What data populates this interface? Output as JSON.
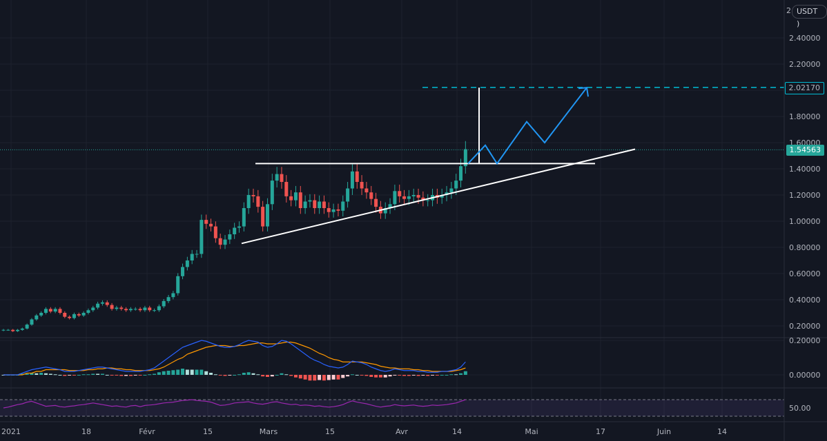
{
  "currency": {
    "prefix": "2",
    "label": "USDT )"
  },
  "last_price_label": "1.54563",
  "target_price_label": "2.02170",
  "colors": {
    "up": "#26a69a",
    "down": "#ef5350",
    "background": "#131722",
    "macd": "#2962ff",
    "signal": "#ff9800",
    "rsi": "#9c27b0",
    "projection": "#2196f3",
    "target_line": "#00bcd4",
    "drawing": "#ffffff"
  },
  "chart_data": [
    {
      "type": "candlestick",
      "pane": "price",
      "y_axis_ticks": [
        "2.40000",
        "2.20000",
        "2.00000",
        "1.80000",
        "1.60000",
        "1.40000",
        "1.20000",
        "1.00000",
        "0.80000",
        "0.60000",
        "0.40000",
        "0.20000"
      ],
      "x_axis_ticks": [
        "2021",
        "18",
        "Févr",
        "15",
        "Mars",
        "15",
        "Avr",
        "14",
        "Mai",
        "17",
        "Juin",
        "14"
      ],
      "ylim": [
        0.1,
        2.6
      ],
      "timeframe_note": "daily candles from 2021-01-01 to 2021-04-14",
      "closes": [
        0.17,
        0.17,
        0.16,
        0.17,
        0.18,
        0.21,
        0.25,
        0.28,
        0.3,
        0.33,
        0.31,
        0.33,
        0.3,
        0.27,
        0.26,
        0.29,
        0.28,
        0.3,
        0.32,
        0.34,
        0.37,
        0.38,
        0.36,
        0.33,
        0.34,
        0.33,
        0.32,
        0.33,
        0.33,
        0.32,
        0.34,
        0.32,
        0.32,
        0.35,
        0.39,
        0.42,
        0.45,
        0.58,
        0.65,
        0.7,
        0.75,
        0.75,
        1.01,
        0.98,
        0.96,
        0.87,
        0.82,
        0.86,
        0.9,
        0.95,
        0.96,
        1.1,
        1.2,
        1.19,
        1.11,
        0.96,
        1.13,
        1.31,
        1.36,
        1.3,
        1.19,
        1.16,
        1.22,
        1.1,
        1.15,
        1.16,
        1.1,
        1.15,
        1.1,
        1.07,
        1.09,
        1.08,
        1.15,
        1.25,
        1.38,
        1.3,
        1.25,
        1.22,
        1.17,
        1.11,
        1.06,
        1.1,
        1.13,
        1.23,
        1.19,
        1.17,
        1.19,
        1.2,
        1.18,
        1.16,
        1.16,
        1.2,
        1.18,
        1.2,
        1.22,
        1.25,
        1.31,
        1.42,
        1.55
      ],
      "price_lines": [
        {
          "label": "last",
          "value": 1.54563
        },
        {
          "label": "target",
          "value": 2.0217
        }
      ],
      "drawings": {
        "resistance": {
          "from": 1.44,
          "to": 1.44
        },
        "ascending_support": {
          "from": 0.83,
          "to": 1.55
        },
        "measured_move": {
          "from": 1.44,
          "to": 2.02
        },
        "projection_path": [
          1.44,
          1.58,
          1.44,
          1.76,
          1.6,
          2.02
        ]
      }
    },
    {
      "type": "line",
      "pane": "macd",
      "y_axis_ticks": [
        "0.20000",
        "0.00000"
      ],
      "series": [
        {
          "indicator": "macd",
          "values": [
            0.0,
            0.0,
            0.0,
            0.0,
            0.01,
            0.02,
            0.03,
            0.035,
            0.04,
            0.045,
            0.04,
            0.035,
            0.03,
            0.02,
            0.02,
            0.02,
            0.025,
            0.03,
            0.035,
            0.04,
            0.045,
            0.045,
            0.04,
            0.035,
            0.03,
            0.025,
            0.02,
            0.02,
            0.02,
            0.02,
            0.025,
            0.03,
            0.04,
            0.06,
            0.08,
            0.1,
            0.12,
            0.14,
            0.16,
            0.17,
            0.18,
            0.19,
            0.2,
            0.195,
            0.185,
            0.175,
            0.165,
            0.16,
            0.16,
            0.165,
            0.175,
            0.19,
            0.2,
            0.195,
            0.19,
            0.17,
            0.16,
            0.165,
            0.18,
            0.2,
            0.195,
            0.18,
            0.16,
            0.14,
            0.12,
            0.1,
            0.085,
            0.075,
            0.06,
            0.05,
            0.045,
            0.04,
            0.045,
            0.06,
            0.08,
            0.075,
            0.07,
            0.06,
            0.045,
            0.035,
            0.025,
            0.02,
            0.025,
            0.035,
            0.03,
            0.025,
            0.025,
            0.025,
            0.02,
            0.02,
            0.015,
            0.015,
            0.015,
            0.02,
            0.02,
            0.025,
            0.03,
            0.045,
            0.075
          ]
        },
        {
          "indicator": "signal",
          "values": [
            0.0,
            0.0,
            0.0,
            0.0,
            0.0,
            0.01,
            0.01,
            0.02,
            0.02,
            0.03,
            0.03,
            0.03,
            0.03,
            0.03,
            0.025,
            0.025,
            0.025,
            0.025,
            0.03,
            0.03,
            0.035,
            0.035,
            0.04,
            0.04,
            0.035,
            0.035,
            0.03,
            0.03,
            0.025,
            0.025,
            0.025,
            0.025,
            0.03,
            0.035,
            0.045,
            0.06,
            0.075,
            0.09,
            0.1,
            0.12,
            0.13,
            0.14,
            0.15,
            0.16,
            0.165,
            0.17,
            0.17,
            0.17,
            0.165,
            0.165,
            0.17,
            0.17,
            0.175,
            0.18,
            0.185,
            0.185,
            0.18,
            0.18,
            0.18,
            0.185,
            0.19,
            0.19,
            0.185,
            0.175,
            0.165,
            0.155,
            0.14,
            0.125,
            0.115,
            0.1,
            0.09,
            0.085,
            0.075,
            0.075,
            0.075,
            0.075,
            0.075,
            0.07,
            0.065,
            0.06,
            0.05,
            0.045,
            0.04,
            0.04,
            0.035,
            0.035,
            0.035,
            0.03,
            0.03,
            0.025,
            0.025,
            0.02,
            0.02,
            0.02,
            0.02,
            0.02,
            0.025,
            0.03,
            0.04
          ]
        }
      ]
    },
    {
      "type": "line",
      "pane": "rsi",
      "y_axis_ticks": [
        "50.00"
      ],
      "bands": [
        70,
        30
      ],
      "series": [
        {
          "indicator": "rsi",
          "values": [
            50,
            52,
            55,
            58,
            60,
            64,
            66,
            62,
            58,
            54,
            55,
            56,
            53,
            52,
            54,
            55,
            57,
            58,
            60,
            62,
            60,
            58,
            56,
            54,
            55,
            53,
            52,
            55,
            56,
            53,
            56,
            57,
            58,
            60,
            62,
            63,
            64,
            66,
            68,
            69,
            70,
            68,
            67,
            66,
            64,
            60,
            56,
            57,
            59,
            62,
            63,
            64,
            65,
            62,
            60,
            59,
            61,
            64,
            65,
            62,
            60,
            58,
            59,
            56,
            57,
            56,
            54,
            55,
            53,
            52,
            53,
            55,
            58,
            63,
            67,
            64,
            62,
            60,
            57,
            54,
            52,
            54,
            55,
            58,
            56,
            55,
            56,
            57,
            55,
            54,
            55,
            57,
            56,
            57,
            58,
            60,
            62,
            66,
            70
          ]
        }
      ]
    }
  ]
}
